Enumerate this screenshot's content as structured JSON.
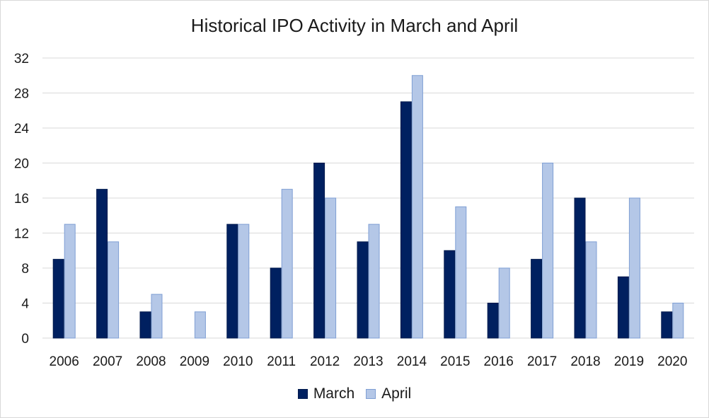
{
  "chart_data": {
    "type": "bar",
    "title": "Historical IPO Activity in March and April",
    "xlabel": "",
    "ylabel": "",
    "categories": [
      "2006",
      "2007",
      "2008",
      "2009",
      "2010",
      "2011",
      "2012",
      "2013",
      "2014",
      "2015",
      "2016",
      "2017",
      "2018",
      "2019",
      "2020"
    ],
    "series": [
      {
        "name": "March",
        "values": [
          9,
          17,
          3,
          0,
          13,
          8,
          20,
          11,
          27,
          10,
          4,
          9,
          16,
          7,
          3
        ],
        "color": "#002060",
        "stroke": "#001a4d"
      },
      {
        "name": "April",
        "values": [
          13,
          11,
          5,
          3,
          13,
          17,
          16,
          13,
          30,
          15,
          8,
          20,
          11,
          16,
          4
        ],
        "color": "#b4c7e7",
        "stroke": "#7f9fd4"
      }
    ],
    "ylim": [
      0,
      32
    ],
    "yticks": [
      0,
      4,
      8,
      12,
      16,
      20,
      24,
      28,
      32
    ],
    "grid": true,
    "gridColor": "#d9d9d9",
    "legend": "bottom"
  }
}
